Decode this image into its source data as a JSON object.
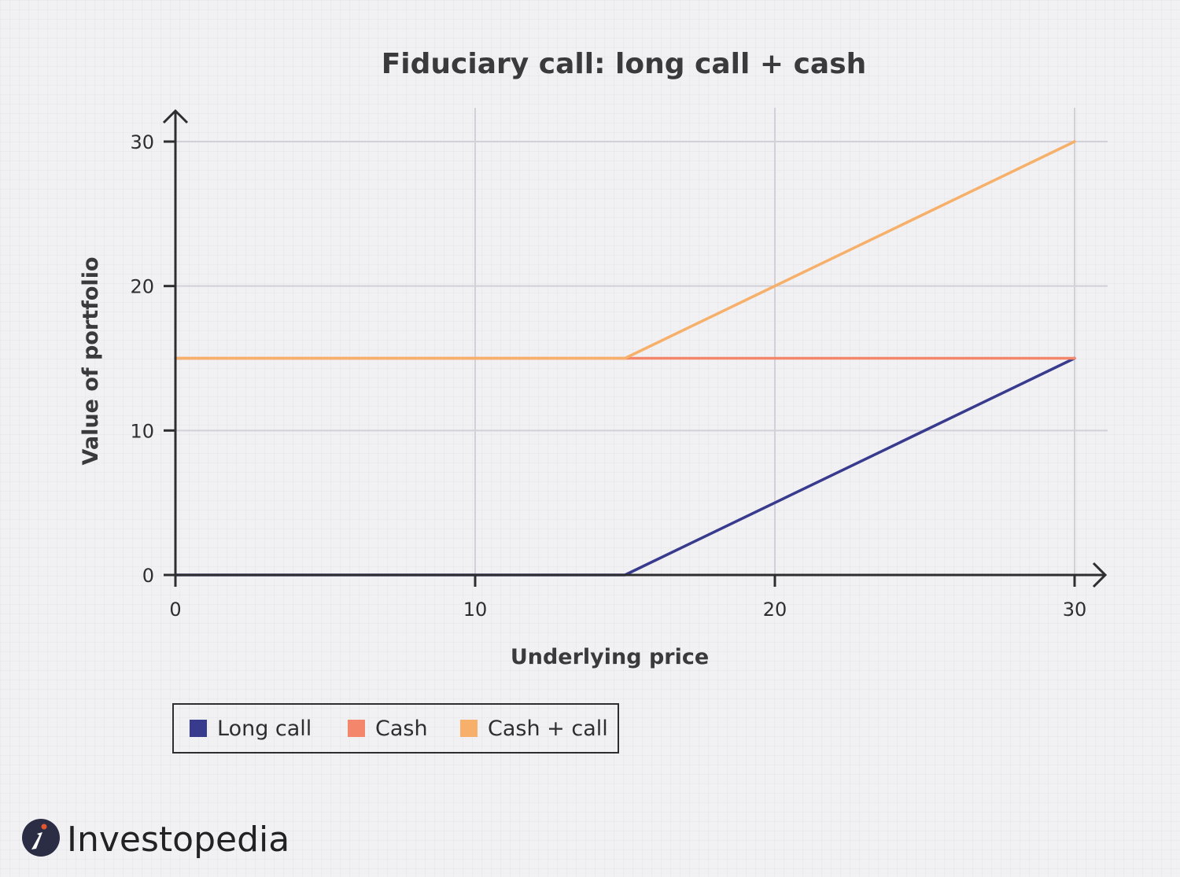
{
  "chart_data": {
    "type": "line",
    "title": "Fiduciary call: long call + cash",
    "xlabel": "Underlying price",
    "ylabel": "Value of portfolio",
    "xlim": [
      0,
      30
    ],
    "ylim": [
      0,
      30
    ],
    "xticks": [
      0,
      10,
      20,
      30
    ],
    "yticks": [
      0,
      10,
      20,
      30
    ],
    "grid": true,
    "legend_position": "bottom-left",
    "series": [
      {
        "name": "Long call",
        "color": "#383a8e",
        "points": [
          [
            0,
            0
          ],
          [
            15,
            0
          ],
          [
            30,
            15
          ]
        ]
      },
      {
        "name": "Cash",
        "color": "#f4876b",
        "points": [
          [
            0,
            15
          ],
          [
            30,
            15
          ]
        ]
      },
      {
        "name": "Cash + call",
        "color": "#f7b06a",
        "points": [
          [
            0,
            15
          ],
          [
            15,
            15
          ],
          [
            30,
            30
          ]
        ]
      }
    ]
  },
  "logo": {
    "text": "Investopedia",
    "mark_color": "#2b2d45",
    "accent_color": "#e4572e"
  }
}
